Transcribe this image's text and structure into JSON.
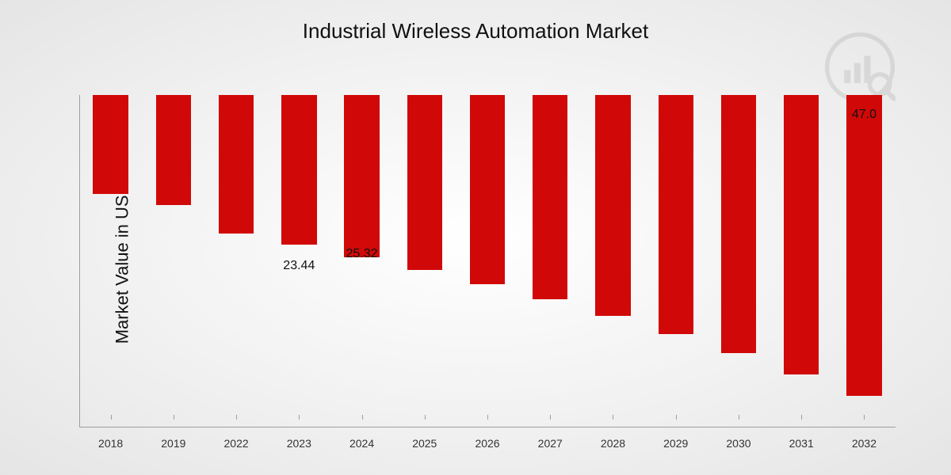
{
  "chart": {
    "type": "bar",
    "title": "Industrial Wireless Automation Market",
    "title_fontsize": 26,
    "ylabel": "Market Value in USD Billion",
    "label_fontsize": 22,
    "categories": [
      "2018",
      "2019",
      "2022",
      "2023",
      "2024",
      "2025",
      "2026",
      "2027",
      "2028",
      "2029",
      "2030",
      "2031",
      "2032"
    ],
    "values": [
      15.5,
      17.2,
      21.7,
      23.44,
      25.32,
      27.4,
      29.6,
      32.0,
      34.6,
      37.4,
      40.4,
      43.7,
      47.0
    ],
    "bar_color": "#d10808",
    "value_labels": {
      "3": "23.44",
      "4": "25.32",
      "12": "47.0"
    },
    "value_label_fontsize": 16,
    "tick_fontsize": 14,
    "ylim": [
      0,
      52
    ],
    "axis_color": "#9e9e9e",
    "background": "radial-gradient(#ffffff,#e5e5e5)",
    "bar_width_ratio": 0.56
  }
}
